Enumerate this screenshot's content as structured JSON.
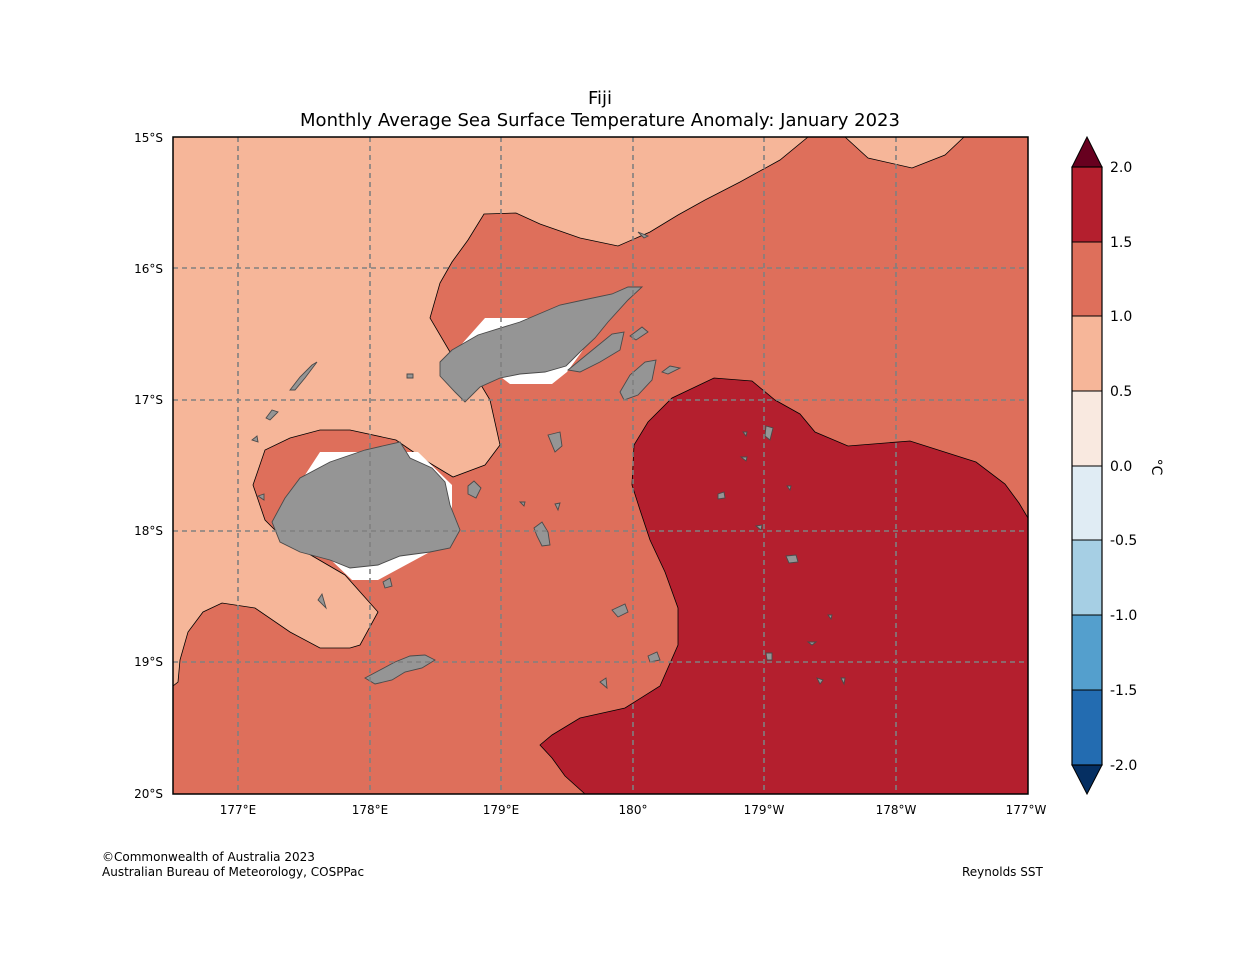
{
  "title": {
    "line1": "Fiji",
    "line2": "Monthly Average Sea Surface Temperature Anomaly: January 2023"
  },
  "map": {
    "lat_labels": [
      "15°S",
      "16°S",
      "17°S",
      "18°S",
      "19°S",
      "20°S"
    ],
    "lon_labels": [
      "177°E",
      "178°E",
      "179°E",
      "180°",
      "179°W",
      "178°W",
      "177°W"
    ],
    "land_color": "#959595",
    "grid_color": "#808080"
  },
  "colorbar": {
    "unit": "°C",
    "levels": [
      "2.0",
      "1.5",
      "1.0",
      "0.5",
      "0.0",
      "-0.5",
      "-1.0",
      "-1.5",
      "-2.0"
    ],
    "colors": {
      "above_2_0": "#67001f",
      "c_1_5_to_2_0": "#b41f2e",
      "c_1_0_to_1_5": "#de6f5b",
      "c_0_5_to_1_0": "#f6b699",
      "c_0_0_to_0_5": "#f9e9e0",
      "c_m0_5_to_0_0": "#e0ecf4",
      "c_m1_0_to_m0_5": "#a6cfe4",
      "c_m1_5_to_m1_0": "#549fcd",
      "c_m2_0_to_m1_5": "#236cb1",
      "below_m2_0": "#052f62"
    }
  },
  "footer": {
    "copyright": "©Commonwealth of Australia 2023",
    "agency": "Australian Bureau of Meteorology, COSPPac",
    "source": "Reynolds SST"
  }
}
